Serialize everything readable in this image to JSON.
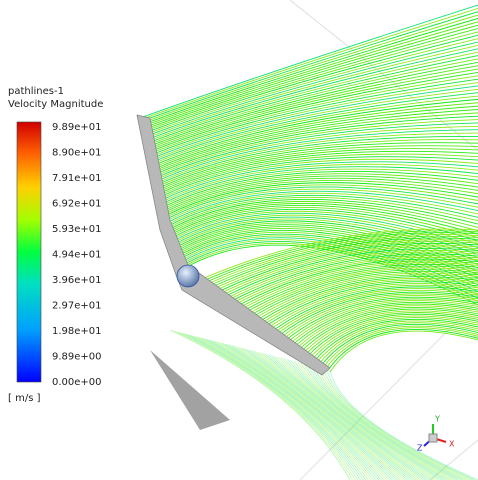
{
  "legend": {
    "title": "pathlines-1",
    "subtitle": "Velocity Magnitude",
    "labels": [
      "9.89e+01",
      "8.90e+01",
      "7.91e+01",
      "6.92e+01",
      "5.93e+01",
      "4.94e+01",
      "3.96e+01",
      "2.97e+01",
      "1.98e+01",
      "9.89e+00",
      "0.00e+00"
    ],
    "units": "[ m/s ]"
  },
  "triad": {
    "x": "X",
    "y": "Y",
    "z": "Z"
  }
}
